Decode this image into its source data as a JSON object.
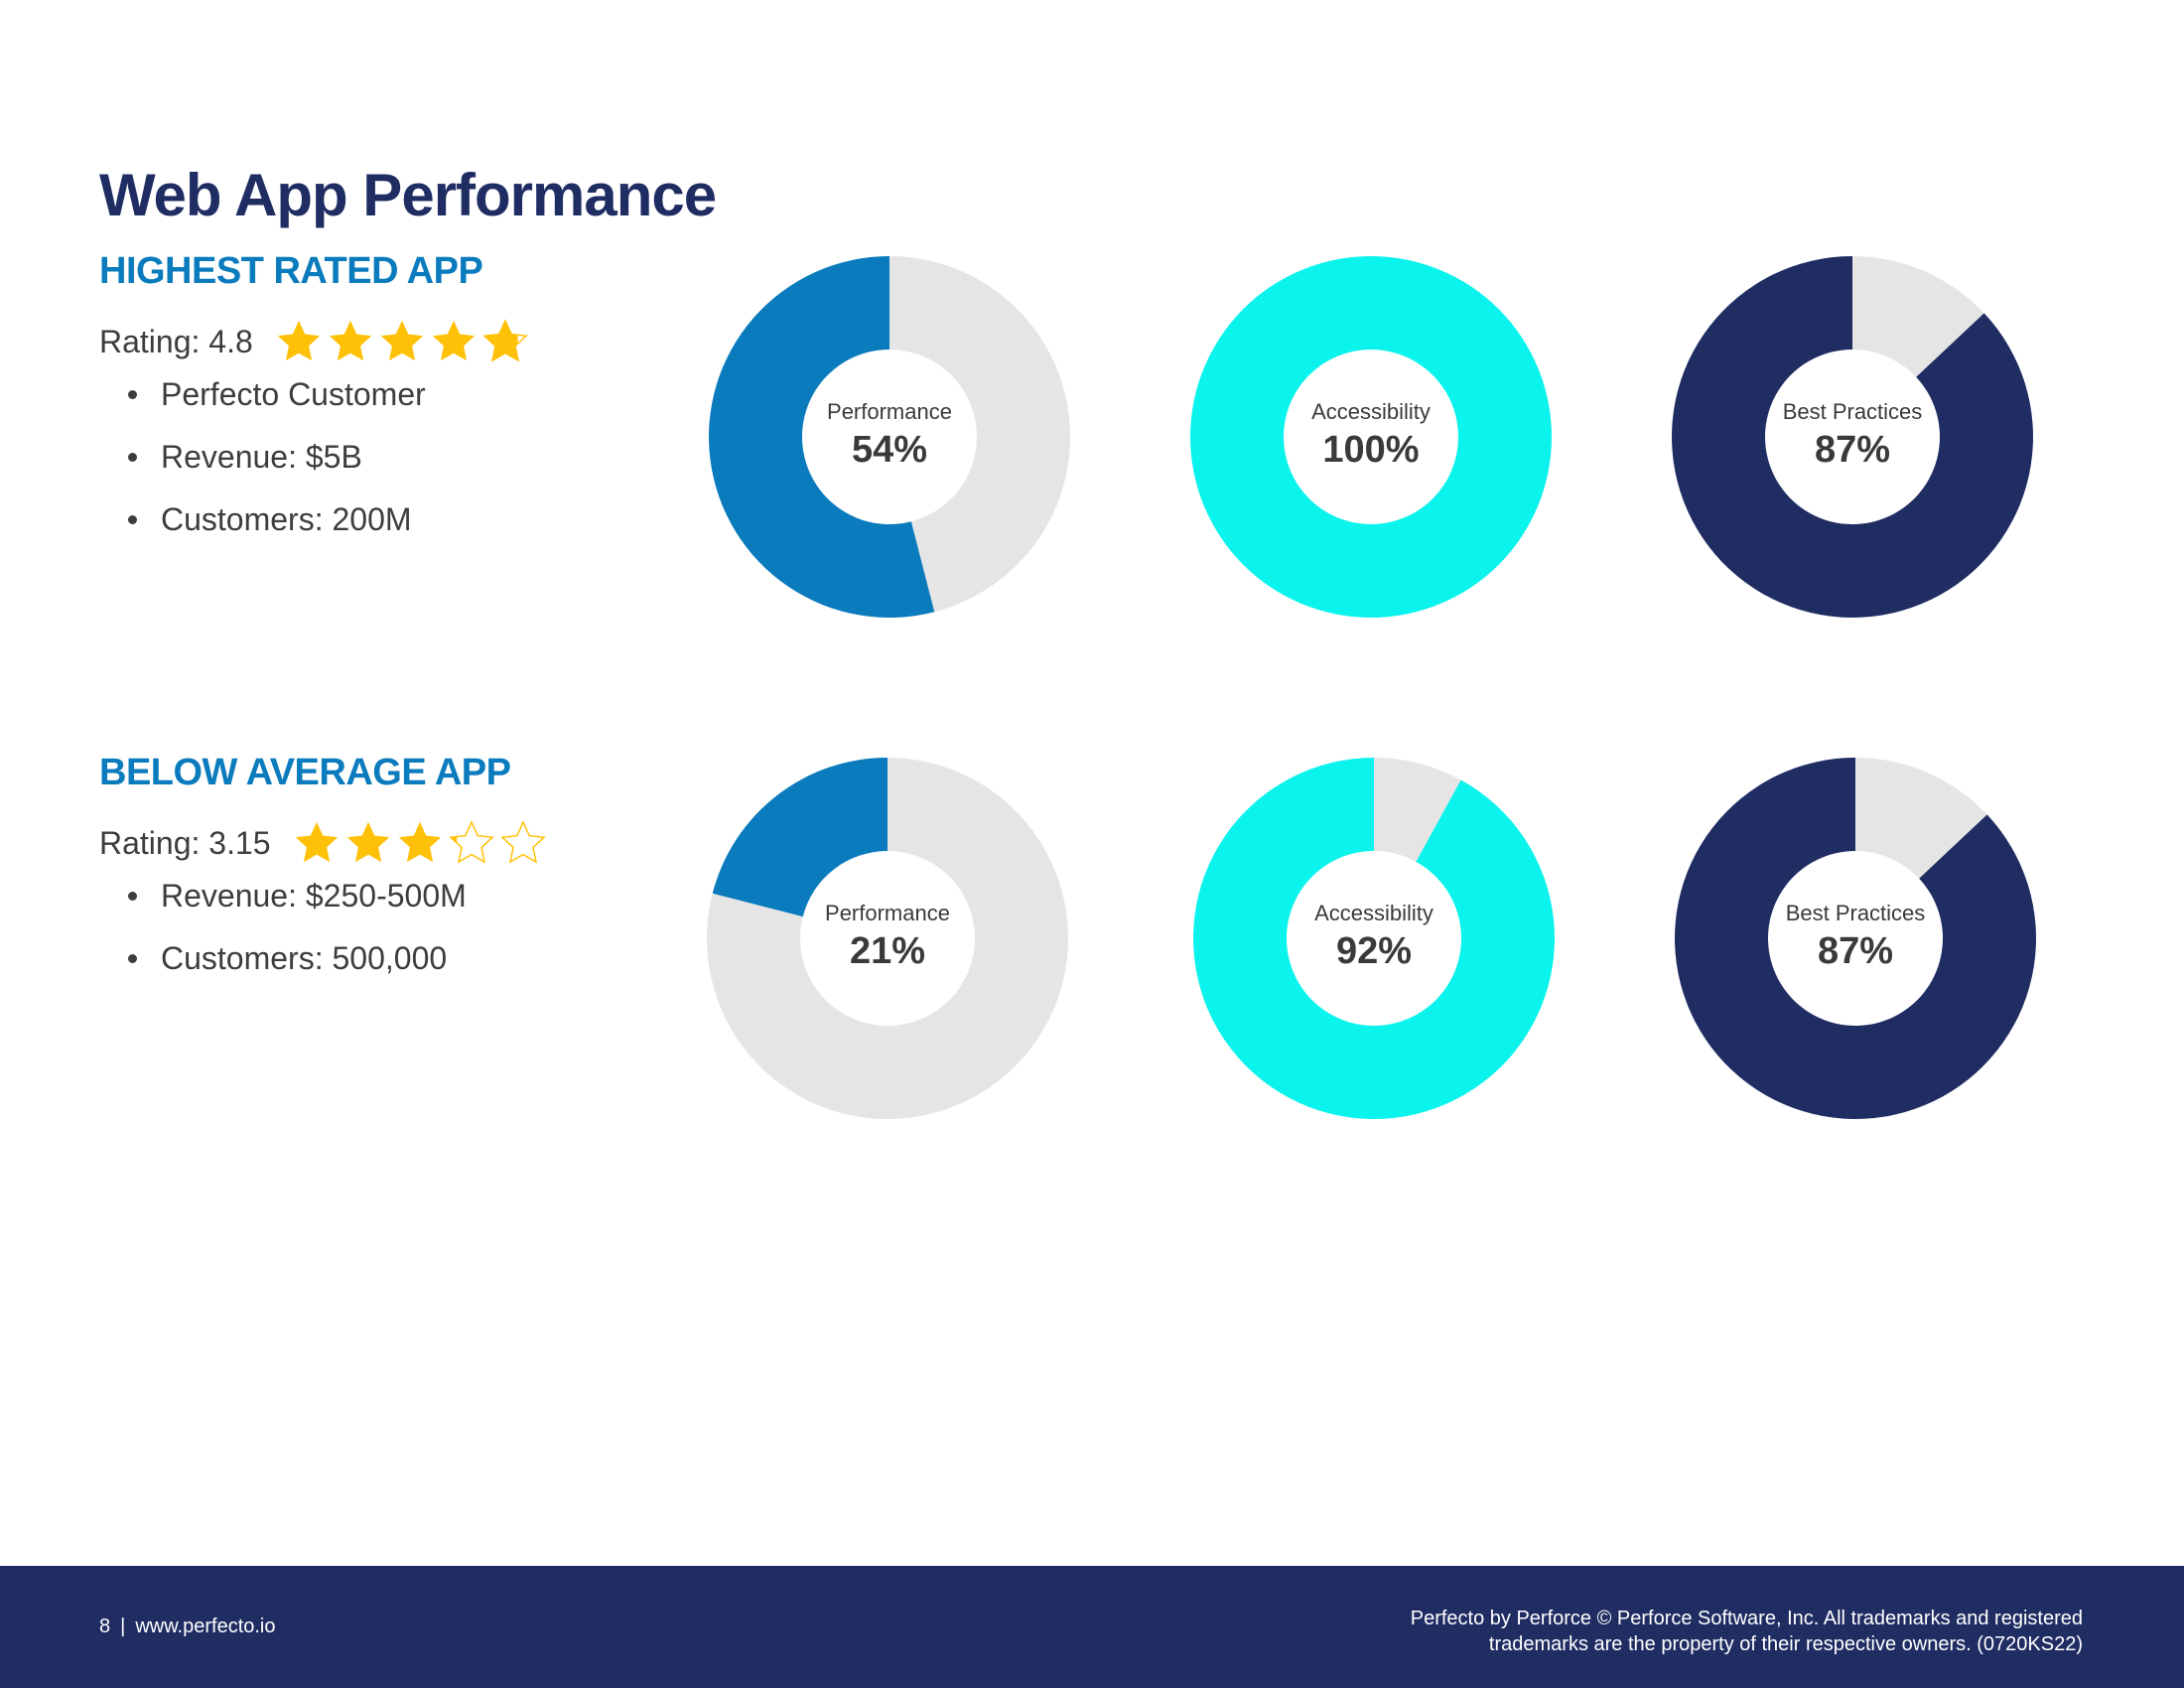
{
  "page": {
    "title": "Web App Performance"
  },
  "colors": {
    "performance": "#0a7bbd",
    "accessibility": "#0af3ec",
    "best_practices": "#202d63",
    "track": "#e5e5e5",
    "star": "#ffc107"
  },
  "apps": [
    {
      "heading": "HIGHEST RATED APP",
      "rating_label": "Rating: 4.8",
      "rating": 4.8,
      "bullets": [
        "Perfecto Customer",
        "Revenue: $5B",
        "Customers: 200M"
      ]
    },
    {
      "heading": "BELOW AVERAGE APP",
      "rating_label": "Rating: 3.15",
      "rating": 3.15,
      "bullets": [
        "Revenue: $250-500M",
        "Customers: 500,000"
      ]
    }
  ],
  "chart_data": [
    {
      "type": "pie",
      "group": "HIGHEST RATED APP",
      "label": "Performance",
      "value_label": "54%",
      "value": 54,
      "color": "#0a7bbd"
    },
    {
      "type": "pie",
      "group": "HIGHEST RATED APP",
      "label": "Accessibility",
      "value_label": "100%",
      "value": 100,
      "color": "#0af3ec"
    },
    {
      "type": "pie",
      "group": "HIGHEST RATED APP",
      "label": "Best Practices",
      "value_label": "87%",
      "value": 87,
      "color": "#202d63"
    },
    {
      "type": "pie",
      "group": "BELOW AVERAGE APP",
      "label": "Performance",
      "value_label": "21%",
      "value": 21,
      "color": "#0a7bbd"
    },
    {
      "type": "pie",
      "group": "BELOW AVERAGE APP",
      "label": "Accessibility",
      "value_label": "92%",
      "value": 92,
      "color": "#0af3ec"
    },
    {
      "type": "pie",
      "group": "BELOW AVERAGE APP",
      "label": "Best Practices",
      "value_label": "87%",
      "value": 87,
      "color": "#202d63"
    }
  ],
  "footer": {
    "page_number": "8",
    "separator": "|",
    "website": "www.perfecto.io",
    "legal_line1": "Perfecto by Perforce © Perforce Software, Inc. All trademarks and registered",
    "legal_line2": "trademarks are the property of their respective owners. (0720KS22)"
  }
}
